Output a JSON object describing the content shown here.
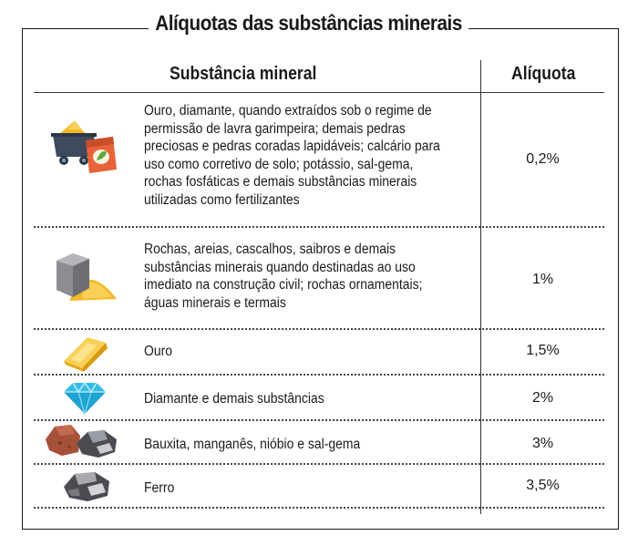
{
  "title": "Alíquotas das substâncias minerais",
  "headers": {
    "substance": "Substância mineral",
    "rate": "Alíquota"
  },
  "rows": [
    {
      "icon": "mining-cart-fertilizer-icon",
      "lines": [
        "Ouro, diamante, quando extraídos sob o regime de",
        "permissão de lavra garimpeira; demais pedras",
        "preciosas e pedras coradas lapidáveis; calcário para",
        "uso como corretivo de solo; potássio, sal-gema,",
        "rochas fosfáticas e demais substâncias minerais",
        "utilizadas como fertilizantes"
      ],
      "rate": "0,2%"
    },
    {
      "icon": "stone-block-sand-icon",
      "lines": [
        "Rochas, areias, cascalhos, saibros e demais",
        "substâncias minerais quando destinadas ao uso",
        "imediato na construção civil; rochas ornamentais;",
        "águas minerais e termais"
      ],
      "rate": "1%"
    },
    {
      "icon": "gold-bar-icon",
      "lines": [
        "Ouro"
      ],
      "rate": "1,5%"
    },
    {
      "icon": "diamond-icon",
      "lines": [
        "Diamante e demais substâncias"
      ],
      "rate": "2%"
    },
    {
      "icon": "ore-rocks-icon",
      "lines": [
        "Bauxita, manganês, nióbio e sal-gema"
      ],
      "rate": "3%"
    },
    {
      "icon": "iron-ore-icon",
      "lines": [
        "Ferro"
      ],
      "rate": "3,5%"
    }
  ],
  "colors": {
    "gold": "#f5b829",
    "cart": "#3d4b5c",
    "bag": "#e8623a",
    "diamond": "#35bde8",
    "stone": "#8c8d90",
    "bauxite": "#a5513a",
    "iron": "#4a4c52"
  }
}
